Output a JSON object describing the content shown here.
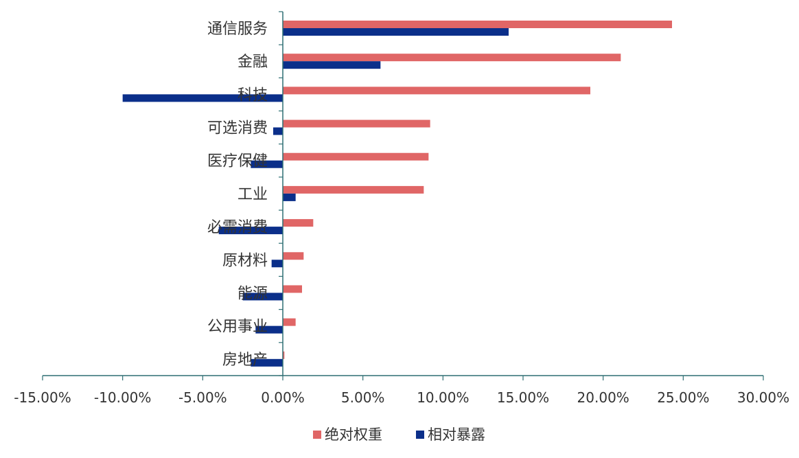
{
  "chart_data": {
    "type": "bar",
    "orientation": "horizontal",
    "categories": [
      "通信服务",
      "金融",
      "科技",
      "可选消费",
      "医疗保健",
      "工业",
      "必需消费",
      "原材料",
      "能源",
      "公用事业",
      "房地产"
    ],
    "series": [
      {
        "name": "绝对权重",
        "color": "#E06666",
        "values": [
          24.3,
          21.1,
          19.2,
          9.2,
          9.1,
          8.8,
          1.9,
          1.3,
          1.2,
          0.8,
          0.1
        ]
      },
      {
        "name": "相对暴露",
        "color": "#0B2F8A",
        "values": [
          14.1,
          6.1,
          -10.0,
          -0.6,
          -2.0,
          0.8,
          -4.0,
          -0.7,
          -2.5,
          -1.7,
          -2.0
        ]
      }
    ],
    "xlim": [
      -15,
      30
    ],
    "x_ticks": [
      -15,
      -10,
      -5,
      0,
      5,
      10,
      15,
      20,
      25,
      30
    ],
    "x_tick_labels": [
      "-15.00%",
      "-10.00%",
      "-5.00%",
      "0.00%",
      "5.00%",
      "10.00%",
      "15.00%",
      "20.00%",
      "25.00%",
      "30.00%"
    ],
    "legend_position": "bottom-center",
    "grid": false,
    "axis_color": "#2E6F73",
    "text_color": "#333333"
  }
}
